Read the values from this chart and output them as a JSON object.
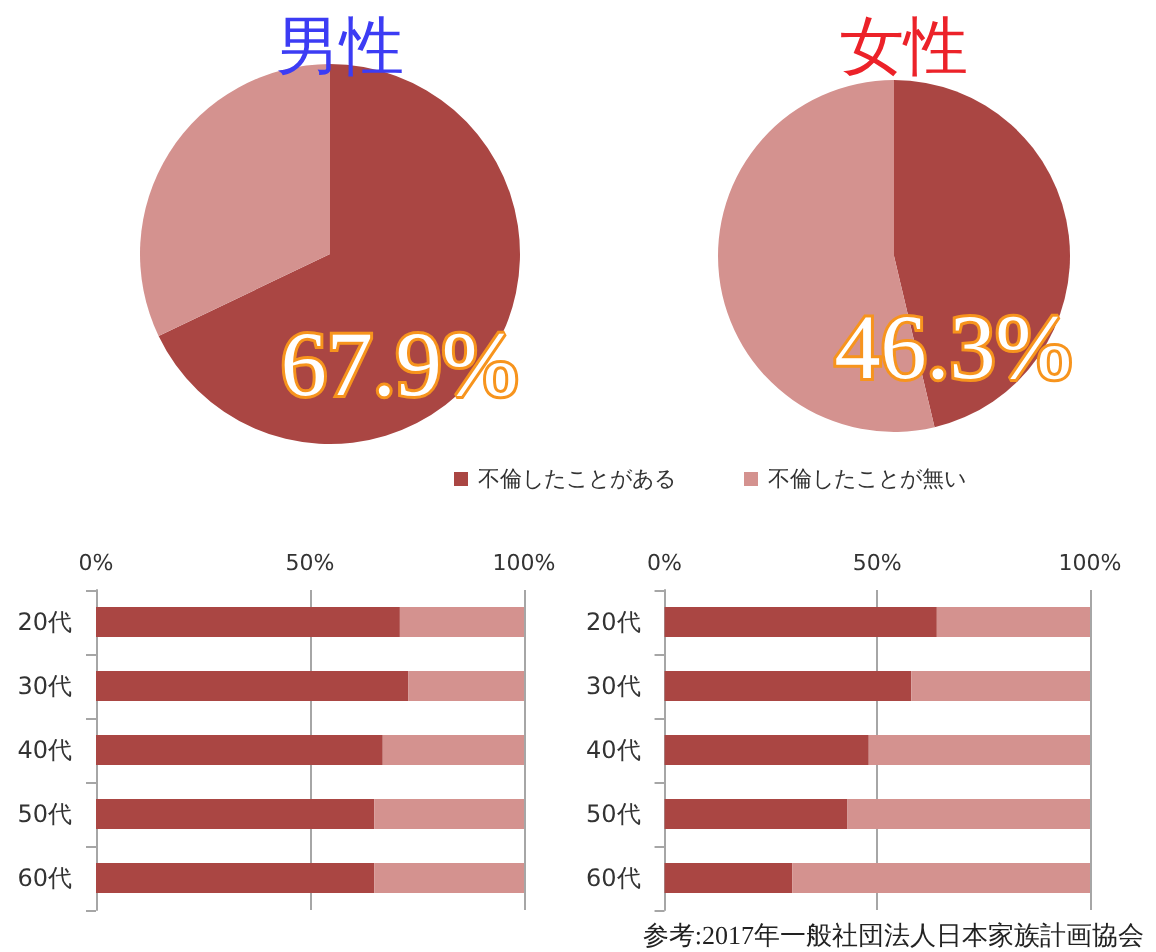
{
  "chart_data": [
    {
      "type": "pie",
      "categories": [
        "不倫したことがある",
        "不倫したことが無い"
      ],
      "colors": [
        "#aa4643",
        "#d4928f"
      ],
      "series": [
        {
          "name": "男性",
          "values": [
            67.9,
            32.1
          ],
          "value_labels": [
            "67.9%",
            null
          ]
        },
        {
          "name": "女性",
          "values": [
            46.3,
            53.7
          ],
          "value_labels": [
            "46.3%",
            null
          ]
        }
      ],
      "legend": "bottom"
    },
    {
      "type": "bar",
      "orientation": "horizontal",
      "stacked": true,
      "categories": [
        "20代",
        "30代",
        "40代",
        "50代",
        "60代"
      ],
      "series": [
        {
          "color": "#aa4643",
          "values": [
            71,
            73,
            67,
            65,
            65
          ]
        },
        {
          "color": "#d4928f",
          "values": [
            29,
            27,
            33,
            35,
            35
          ]
        }
      ],
      "xlim": [
        0,
        100
      ],
      "xticks": [
        {
          "value": 0,
          "label": "0%"
        },
        {
          "value": 50,
          "label": "50%"
        },
        {
          "value": 100,
          "label": "100%"
        }
      ],
      "grid": "x"
    },
    {
      "type": "bar",
      "orientation": "horizontal",
      "stacked": true,
      "categories": [
        "20代",
        "30代",
        "40代",
        "50代",
        "60代"
      ],
      "series": [
        {
          "color": "#aa4643",
          "values": [
            64,
            58,
            48,
            43,
            30
          ]
        },
        {
          "color": "#d4928f",
          "values": [
            36,
            42,
            52,
            57,
            70
          ]
        }
      ],
      "xlim": [
        0,
        100
      ],
      "xticks": [
        {
          "value": 0,
          "label": "0%"
        },
        {
          "value": 50,
          "label": "50%"
        },
        {
          "value": 100,
          "label": "100%"
        }
      ],
      "grid": "x",
      "annotations": [
        "参考:2017年一般社団法人日本家族計画協会"
      ]
    }
  ]
}
